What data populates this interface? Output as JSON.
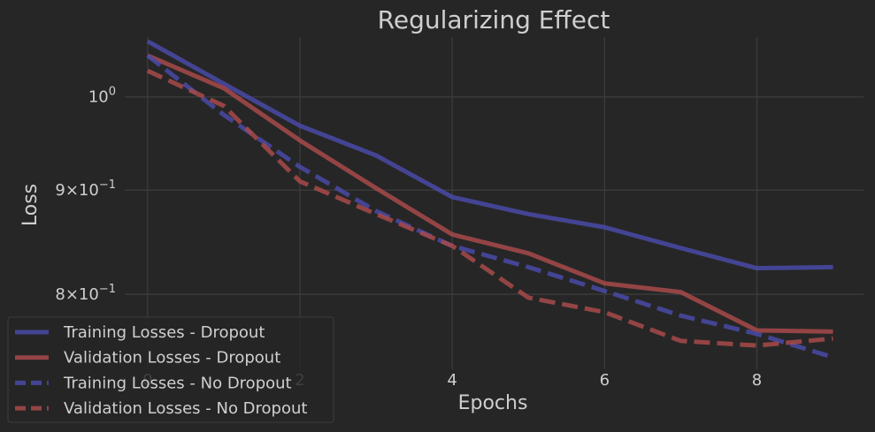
{
  "chart_data": {
    "type": "line",
    "title": "Regularizing Effect",
    "xlabel": "Epochs",
    "ylabel": "Loss",
    "yscale": "log",
    "grid": true,
    "legend_position": "bottom-left",
    "xlim": [
      -0.3,
      9.4
    ],
    "ylim": [
      0.735,
      1.07
    ],
    "x_ticks": [
      0,
      2,
      4,
      6,
      8
    ],
    "y_ticks": [
      {
        "value": 1.0,
        "label": "10^0"
      },
      {
        "value": 0.9,
        "label": "9×10^-1"
      },
      {
        "value": 0.8,
        "label": "8×10^-1"
      }
    ],
    "x": [
      0,
      1,
      2,
      3,
      4,
      5,
      6,
      7,
      8,
      9
    ],
    "series": [
      {
        "name": "Training Losses - Dropout",
        "color": "#4a4aa8",
        "dash": "solid",
        "values": [
          1.065,
          1.015,
          0.968,
          0.936,
          0.893,
          0.876,
          0.863,
          0.843,
          0.824,
          0.825
        ]
      },
      {
        "name": "Validation Losses - Dropout",
        "color": "#a84a4a",
        "dash": "solid",
        "values": [
          1.048,
          1.01,
          0.952,
          0.902,
          0.856,
          0.838,
          0.81,
          0.802,
          0.768,
          0.767
        ]
      },
      {
        "name": "Training Losses - No Dropout",
        "color": "#4a4aa8",
        "dash": "dashed",
        "values": [
          1.048,
          0.98,
          0.924,
          0.879,
          0.845,
          0.825,
          0.803,
          0.781,
          0.765,
          0.745
        ]
      },
      {
        "name": "Validation Losses - No Dropout",
        "color": "#a84a4a",
        "dash": "dashed",
        "values": [
          1.03,
          0.99,
          0.909,
          0.876,
          0.845,
          0.797,
          0.784,
          0.759,
          0.755,
          0.761
        ]
      }
    ]
  }
}
